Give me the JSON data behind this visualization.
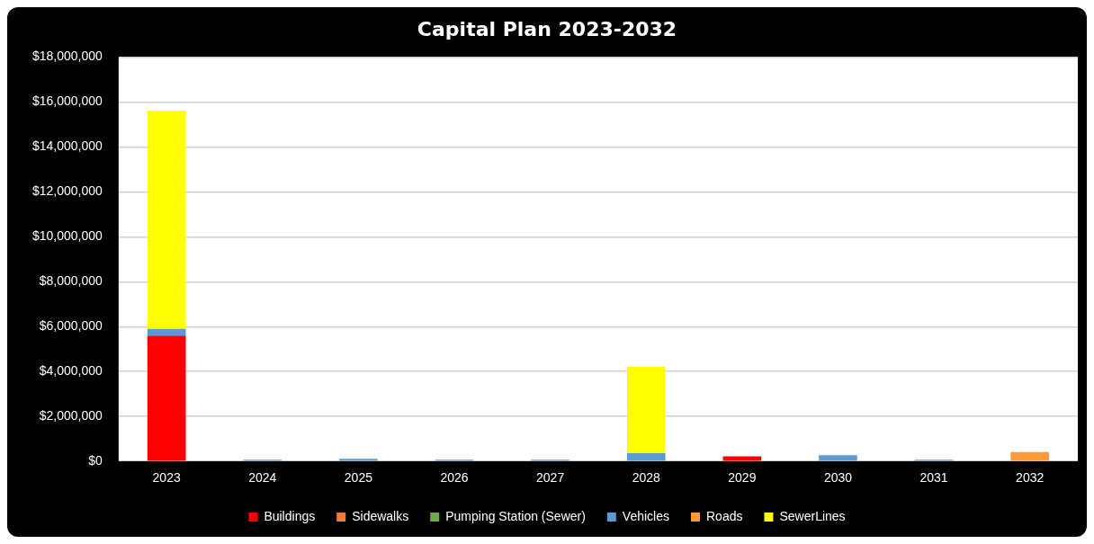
{
  "chart_data": {
    "type": "bar",
    "title": "Capital Plan 2023-2032",
    "stacked": true,
    "categories": [
      "2023",
      "2024",
      "2025",
      "2026",
      "2027",
      "2028",
      "2029",
      "2030",
      "2031",
      "2032"
    ],
    "series": [
      {
        "name": "Buildings",
        "color": "#ff0000",
        "values": [
          5600000,
          0,
          0,
          0,
          0,
          0,
          230000,
          0,
          0,
          0
        ]
      },
      {
        "name": "Sidewalks",
        "color": "#ed7d31",
        "values": [
          0,
          0,
          0,
          0,
          0,
          0,
          0,
          0,
          0,
          0
        ]
      },
      {
        "name": "Pumping Station (Sewer)",
        "color": "#70ad47",
        "values": [
          0,
          0,
          0,
          0,
          0,
          0,
          0,
          0,
          0,
          0
        ]
      },
      {
        "name": "Vehicles",
        "color": "#5b9bd5",
        "values": [
          300000,
          80000,
          120000,
          80000,
          80000,
          370000,
          0,
          280000,
          80000,
          0
        ]
      },
      {
        "name": "Roads",
        "color": "#ff9933",
        "values": [
          0,
          0,
          0,
          0,
          0,
          0,
          0,
          0,
          0,
          420000
        ]
      },
      {
        "name": "SewerLines",
        "color": "#ffff00",
        "values": [
          9700000,
          0,
          0,
          0,
          0,
          3850000,
          0,
          0,
          0,
          0
        ]
      }
    ],
    "ylim": [
      0,
      18000000
    ],
    "yticks": [
      {
        "value": 0,
        "label": "$0"
      },
      {
        "value": 2000000,
        "label": "$2,000,000"
      },
      {
        "value": 4000000,
        "label": "$4,000,000"
      },
      {
        "value": 6000000,
        "label": "$6,000,000"
      },
      {
        "value": 8000000,
        "label": "$8,000,000"
      },
      {
        "value": 10000000,
        "label": "$10,000,000"
      },
      {
        "value": 12000000,
        "label": "$12,000,000"
      },
      {
        "value": 14000000,
        "label": "$14,000,000"
      },
      {
        "value": 16000000,
        "label": "$16,000,000"
      },
      {
        "value": 18000000,
        "label": "$18,000,000"
      }
    ],
    "grid": "y",
    "legend": "bottom"
  }
}
